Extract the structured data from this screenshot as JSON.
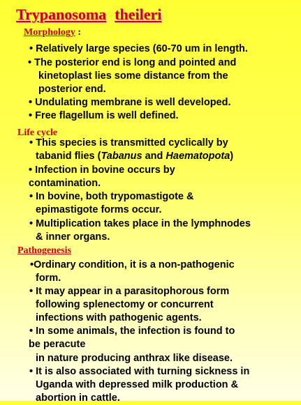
{
  "title": {
    "word1": "Trypanosoma",
    "word2": "theileri"
  },
  "morphology": {
    "heading": "Morphology",
    "colon": " :",
    "lines": [
      "• Relatively large species (60-70 um in length.",
      "• The posterior end is long and pointed and",
      "kinetoplast lies some distance from the",
      "posterior end.",
      "• Undulating membrane is well developed.",
      "• Free flagellum is well defined."
    ]
  },
  "life_cycle": {
    "heading": "Life cycle",
    "line1": "• This species is transmitted cyclically by",
    "line2_pre": "tabanid flies (",
    "line2_it1": "Tabanus",
    "line2_mid": " and ",
    "line2_it2": "Haematopota",
    "line2_post": ")",
    "lines": [
      "• Infection in bovine occurs by",
      "contamination.",
      "• In bovine, both trypomastigote &",
      "epimastigote forms occur.",
      "• Multiplication takes place in the lymphnodes",
      "& inner organs."
    ]
  },
  "pathogenesis": {
    "heading": "Pathogenesis",
    "lines": [
      "•Ordinary condition, it is a non-pathogenic",
      "form.",
      "• It may appear in a parasitophorous form",
      "following splenectomy or concurrent",
      "infections with pathogenic agents.",
      "• In some animals, the infection is found to",
      "be peracute",
      "in nature producing anthrax like disease.",
      "• It is also associated with turning sickness in",
      "Uganda with depressed milk production &",
      "abortion in cattle."
    ]
  }
}
